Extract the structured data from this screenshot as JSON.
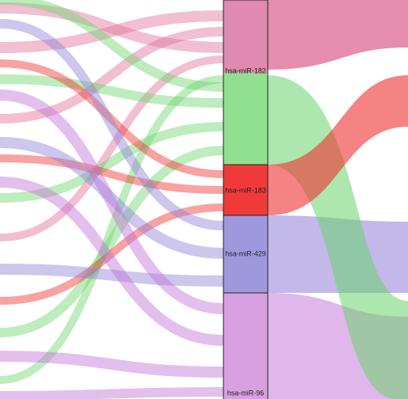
{
  "nodes": [
    {
      "label": "hsa-miR-182"
    },
    {
      "label": "hsa-miR-183"
    },
    {
      "label": "hsa-miR-429"
    },
    {
      "label": "hsa-miR-96"
    }
  ]
}
